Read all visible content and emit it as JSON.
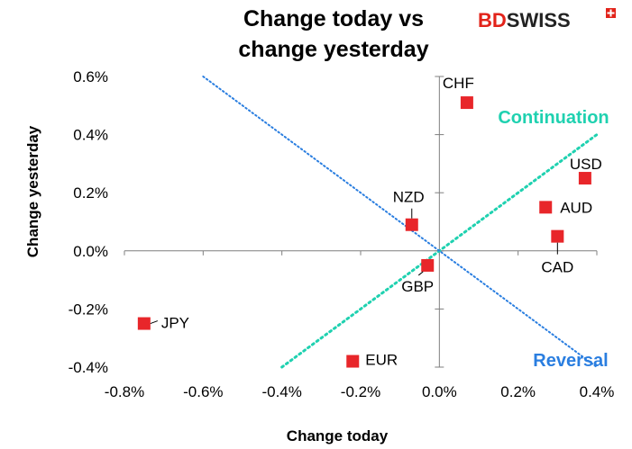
{
  "brand": {
    "name_part1": "BD",
    "name_part2": "SWISS",
    "color_primary": "#e2231a",
    "color_secondary": "#222222"
  },
  "chart_data": {
    "type": "scatter",
    "title_line1": "Change today vs",
    "title_line2": "change yesterday",
    "xlabel": "Change today",
    "ylabel": "Change yesterday",
    "xlim": [
      -0.8,
      0.4
    ],
    "ylim": [
      -0.4,
      0.6
    ],
    "x_ticks": [
      -0.8,
      -0.6,
      -0.4,
      -0.2,
      0.0,
      0.2,
      0.4
    ],
    "y_ticks": [
      -0.4,
      -0.2,
      0.0,
      0.2,
      0.4,
      0.6
    ],
    "x_tick_labels": [
      "-0.8%",
      "-0.6%",
      "-0.4%",
      "-0.2%",
      "0.0%",
      "0.2%",
      "0.4%"
    ],
    "y_tick_labels": [
      "-0.4%",
      "-0.2%",
      "0.0%",
      "0.2%",
      "0.4%",
      "0.6%"
    ],
    "grid": false,
    "marker_color": "#e8262a",
    "points": [
      {
        "label": "CHF",
        "x": 0.07,
        "y": 0.51
      },
      {
        "label": "USD",
        "x": 0.37,
        "y": 0.25
      },
      {
        "label": "AUD",
        "x": 0.27,
        "y": 0.15
      },
      {
        "label": "CAD",
        "x": 0.3,
        "y": 0.05
      },
      {
        "label": "NZD",
        "x": -0.07,
        "y": 0.09
      },
      {
        "label": "GBP",
        "x": -0.03,
        "y": -0.05
      },
      {
        "label": "JPY",
        "x": -0.75,
        "y": -0.25
      },
      {
        "label": "EUR",
        "x": -0.22,
        "y": -0.38
      }
    ],
    "lines": [
      {
        "name": "Continuation",
        "color": "#1fd1b0",
        "from": [
          -0.4,
          -0.4
        ],
        "to": [
          0.4,
          0.4
        ]
      },
      {
        "name": "Reversal",
        "color": "#2a7ee0",
        "from": [
          -0.6,
          0.6
        ],
        "to": [
          0.4,
          -0.4
        ]
      }
    ]
  }
}
